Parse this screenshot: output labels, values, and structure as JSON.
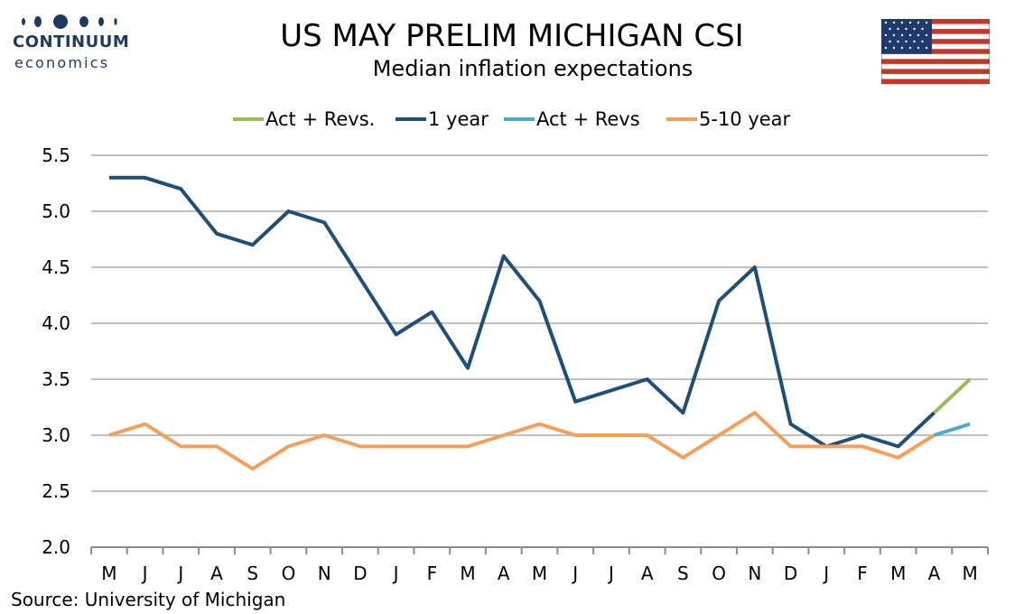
{
  "header": {
    "logo_main": "CONTINUUM",
    "logo_sub": "economics",
    "title": "US MAY PRELIM MICHIGAN CSI",
    "subtitle": "Median inflation expectations"
  },
  "source": "Source: University of Michigan",
  "colors": {
    "navy": "#1f4e79",
    "orange": "#f4a05a",
    "green": "#9bbb59",
    "lightblue": "#4bacc6",
    "grid": "#c0c0c0",
    "logo": "#1f3a5f"
  },
  "chart_data": {
    "type": "line",
    "categories": [
      "M",
      "J",
      "J",
      "A",
      "S",
      "O",
      "N",
      "D",
      "J",
      "F",
      "M",
      "A",
      "M",
      "J",
      "J",
      "A",
      "S",
      "O",
      "N",
      "D",
      "J",
      "F",
      "M",
      "A",
      "M"
    ],
    "ylim": [
      2.0,
      5.5
    ],
    "yticks": [
      "2.0",
      "2.5",
      "3.0",
      "3.5",
      "4.0",
      "4.5",
      "5.0",
      "5.5"
    ],
    "grid": true,
    "legend_position": "top",
    "legend": [
      "Act + Revs.",
      "1 year",
      "Act + Revs",
      "5-10 year"
    ],
    "series": [
      {
        "name": "1 year",
        "color": "#1f4e79",
        "values": [
          5.3,
          5.3,
          5.2,
          4.8,
          4.7,
          5.0,
          4.9,
          4.4,
          3.9,
          4.1,
          3.6,
          4.6,
          4.2,
          3.3,
          3.4,
          3.5,
          3.2,
          4.2,
          4.5,
          3.1,
          2.9,
          3.0,
          2.9,
          3.2,
          null
        ]
      },
      {
        "name": "Act + Revs.",
        "color": "#9bbb59",
        "values": [
          null,
          null,
          null,
          null,
          null,
          null,
          null,
          null,
          null,
          null,
          null,
          null,
          null,
          null,
          null,
          null,
          null,
          null,
          null,
          null,
          null,
          null,
          null,
          3.2,
          3.5
        ]
      },
      {
        "name": "5-10 year",
        "color": "#f4a05a",
        "values": [
          3.0,
          3.1,
          2.9,
          2.9,
          2.7,
          2.9,
          3.0,
          2.9,
          2.9,
          2.9,
          2.9,
          3.0,
          3.1,
          3.0,
          3.0,
          3.0,
          2.8,
          3.0,
          3.2,
          2.9,
          2.9,
          2.9,
          2.8,
          3.0,
          null
        ]
      },
      {
        "name": "Act + Revs",
        "color": "#4bacc6",
        "values": [
          null,
          null,
          null,
          null,
          null,
          null,
          null,
          null,
          null,
          null,
          null,
          null,
          null,
          null,
          null,
          null,
          null,
          null,
          null,
          null,
          null,
          null,
          null,
          3.0,
          3.1
        ]
      }
    ]
  }
}
